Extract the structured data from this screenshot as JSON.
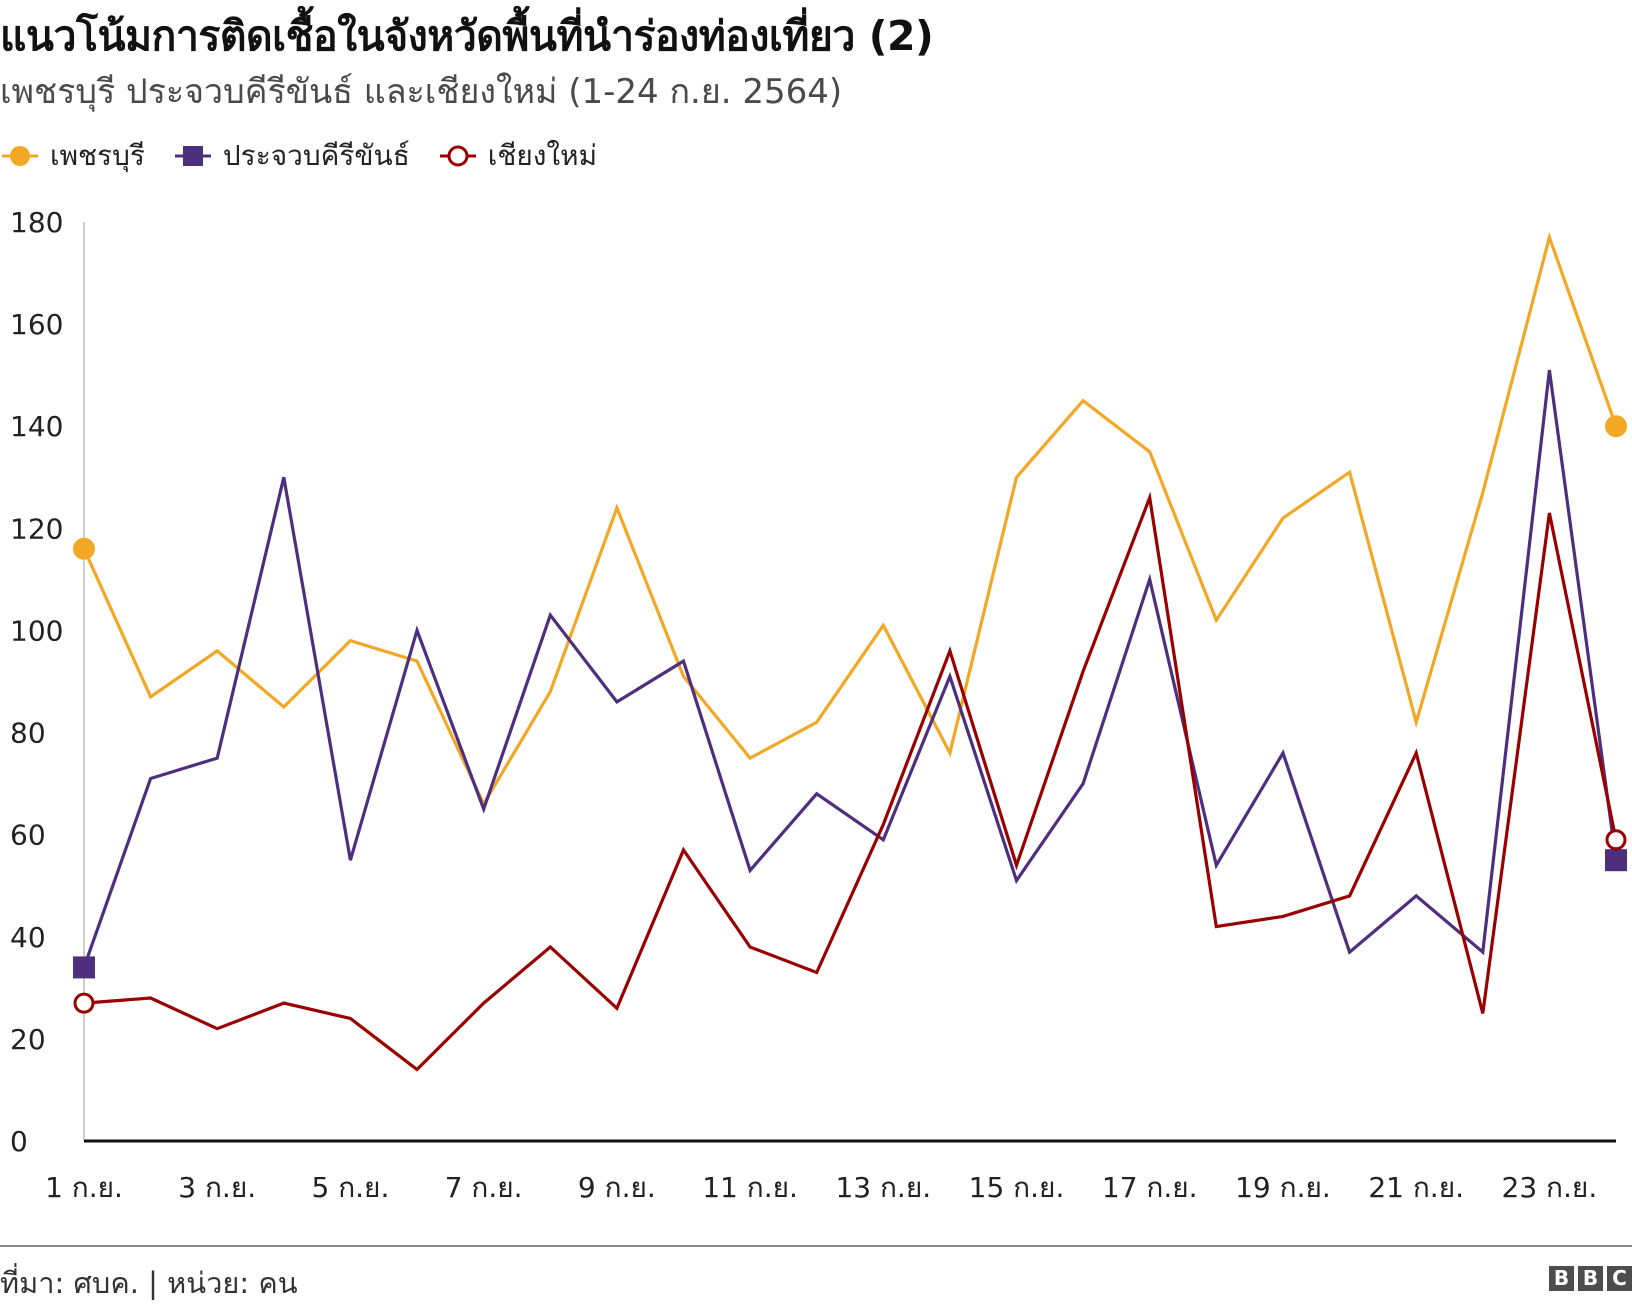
{
  "header": {
    "title": "แนวโน้มการติดเชื้อในจังหวัดพื้นที่นำร่องท่องเที่ยว (2)",
    "subtitle": "เพชรบุรี ประจวบคีรีขันธ์ และเชียงใหม่ (1-24 ก.ย. 2564)"
  },
  "footer": {
    "source": "ที่มา: ศบค. | หน่วย: คน",
    "logo_letters": [
      "B",
      "B",
      "C"
    ]
  },
  "chart_data": {
    "type": "line",
    "title": "แนวโน้มการติดเชื้อในจังหวัดพื้นที่นำร่องท่องเที่ยว (2)",
    "subtitle": "เพชรบุรี ประจวบคีรีขันธ์ และเชียงใหม่ (1-24 ก.ย. 2564)",
    "xlabel": "",
    "ylabel": "",
    "ylim": [
      0,
      180
    ],
    "yticks": [
      0,
      20,
      40,
      60,
      80,
      100,
      120,
      140,
      160,
      180
    ],
    "grid": false,
    "legend": "top-left",
    "x": [
      "1 ก.ย.",
      "2 ก.ย.",
      "3 ก.ย.",
      "4 ก.ย.",
      "5 ก.ย.",
      "6 ก.ย.",
      "7 ก.ย.",
      "8 ก.ย.",
      "9 ก.ย.",
      "10 ก.ย.",
      "11 ก.ย.",
      "12 ก.ย.",
      "13 ก.ย.",
      "14 ก.ย.",
      "15 ก.ย.",
      "16 ก.ย.",
      "17 ก.ย.",
      "18 ก.ย.",
      "19 ก.ย.",
      "20 ก.ย.",
      "21 ก.ย.",
      "22 ก.ย.",
      "23 ก.ย.",
      "24 ก.ย."
    ],
    "xtick_labels": [
      "1 ก.ย.",
      "3 ก.ย.",
      "5 ก.ย.",
      "7 ก.ย.",
      "9 ก.ย.",
      "11 ก.ย.",
      "13 ก.ย.",
      "15 ก.ย.",
      "17 ก.ย.",
      "19 ก.ย.",
      "21 ก.ย.",
      "23 ก.ย."
    ],
    "series": [
      {
        "name": "เพชรบุรี",
        "color": "#f2a825",
        "marker": "filled-circle",
        "values": [
          116,
          87,
          96,
          85,
          98,
          94,
          66,
          88,
          124,
          91,
          75,
          82,
          101,
          76,
          130,
          145,
          135,
          102,
          122,
          131,
          82,
          127,
          177,
          140
        ]
      },
      {
        "name": "ประจวบคีรีขันธ์",
        "color": "#4e2f7e",
        "marker": "filled-square",
        "values": [
          34,
          71,
          75,
          130,
          55,
          100,
          65,
          103,
          86,
          94,
          53,
          68,
          59,
          91,
          51,
          70,
          110,
          54,
          76,
          37,
          48,
          37,
          151,
          55
        ]
      },
      {
        "name": "เชียงใหม่",
        "color": "#990000",
        "marker": "hollow-circle",
        "values": [
          27,
          28,
          22,
          27,
          24,
          14,
          27,
          38,
          26,
          57,
          38,
          33,
          62,
          96,
          54,
          92,
          126,
          42,
          44,
          48,
          76,
          25,
          123,
          59
        ]
      }
    ]
  }
}
